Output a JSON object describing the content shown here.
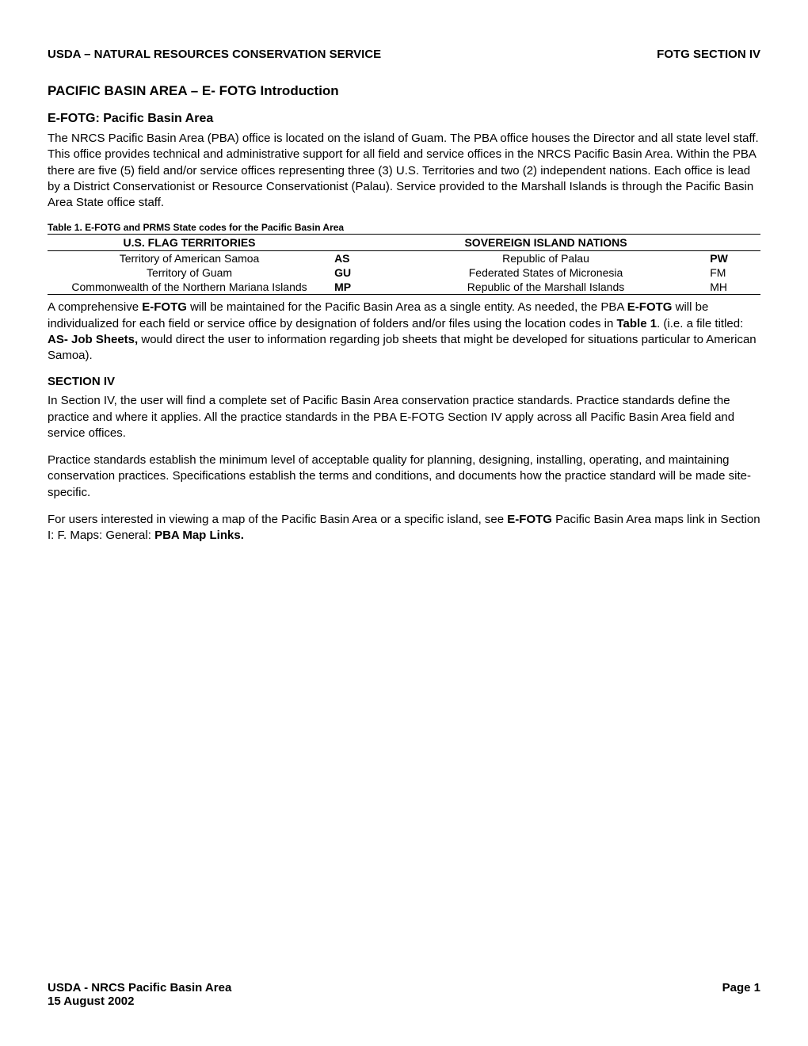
{
  "header": {
    "left": "USDA – NATURAL RESOURCES CONSERVATION SERVICE",
    "right": "FOTG SECTION IV"
  },
  "title1": "PACIFIC BASIN AREA – E- FOTG Introduction",
  "title2": "E-FOTG: Pacific Basin Area",
  "para1": "The NRCS Pacific Basin Area (PBA) office is located on the island of Guam. The PBA office houses the Director and all state level staff.  This office provides technical and administrative support for all field and service offices in the NRCS Pacific Basin Area.  Within the PBA there are five (5) field and/or service offices representing three (3) U.S. Territories and two (2) independent nations.  Each office is lead by a District Conservationist or Resource Conservationist (Palau). Service provided to the Marshall Islands is through the Pacific Basin Area State office staff.",
  "table": {
    "caption": "Table 1. E-FOTG and PRMS State codes for the Pacific Basin Area",
    "header_col1": "U.S. FLAG TERRITORIES",
    "header_col2": "SOVEREIGN ISLAND NATIONS",
    "rows": [
      {
        "territory": "Territory of American Samoa",
        "code1": "AS",
        "nation": "Republic of Palau",
        "code2": "PW",
        "code2_bold": true
      },
      {
        "territory": "Territory of Guam",
        "code1": "GU",
        "nation": "Federated States of Micronesia",
        "code2": "FM",
        "code2_bold": false
      },
      {
        "territory": "Commonwealth of the Northern Mariana Islands",
        "code1": "MP",
        "nation": "Republic of the Marshall Islands",
        "code2": "MH",
        "code2_bold": false
      }
    ]
  },
  "para2_parts": {
    "p1": "A comprehensive ",
    "b1": "E-FOTG",
    "p2": " will be maintained for the Pacific Basin Area as a single entity.  As needed, the PBA ",
    "b2": "E-FOTG",
    "p3": " will be individualized for each field or service office by designation of folders and/or files using the location codes in ",
    "b3": "Table 1",
    "p4": ". (i.e. a file titled: ",
    "b4": "AS- Job Sheets,",
    "p5": " would direct the user to information regarding job sheets that might be developed for situations particular to American Samoa)."
  },
  "section_header": "SECTION IV",
  "para3": "In Section IV, the user will find a complete set of Pacific Basin Area conservation practice standards. Practice standards define the practice and where it applies.  All the practice standards in the PBA E-FOTG Section IV apply across all Pacific Basin Area field and service offices.",
  "para4": "Practice standards establish the minimum level of acceptable quality for planning, designing, installing, operating, and maintaining conservation practices. Specifications establish the terms and conditions, and documents how the practice standard will be made site-specific.",
  "para5_parts": {
    "p1": "For users interested in viewing a map of the Pacific Basin Area or a specific island, see ",
    "b1": "E-FOTG",
    "p2": " Pacific Basin Area maps link in Section I: F. Maps: General: ",
    "b2": "PBA Map Links."
  },
  "footer": {
    "left_line1": "USDA - NRCS Pacific Basin Area",
    "left_line2": "15 August 2002",
    "right": "Page 1"
  }
}
